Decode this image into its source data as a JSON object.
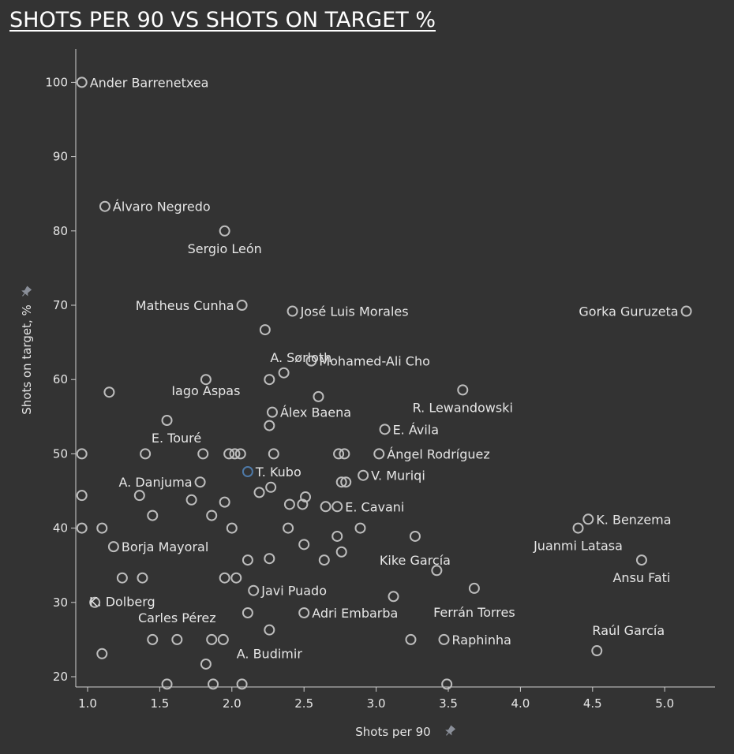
{
  "colors": {
    "background": "#333333",
    "marker": "#bdbdbd",
    "highlight": "#4e79a7",
    "text": "#e6e6e6",
    "axis": "#cfcfcf"
  },
  "icons": {
    "axis_pin": "pin-icon"
  },
  "chart_data": {
    "type": "scatter",
    "title": "SHOTS PER 90 VS SHOTS ON TARGET %",
    "xlabel": "Shots per 90",
    "ylabel": "Shots on target, %",
    "xlim": [
      0.95,
      5.45
    ],
    "ylim": [
      19,
      106
    ],
    "xticks": [
      "1.0",
      "1.5",
      "2.0",
      "2.5",
      "3.0",
      "3.5",
      "4.0",
      "4.5",
      "5.0"
    ],
    "yticks": [
      "20",
      "30",
      "40",
      "50",
      "60",
      "70",
      "80",
      "90",
      "100"
    ],
    "grid": false,
    "labeled_points": [
      {
        "name": "Ander Barrenetxea",
        "x": 0.96,
        "y": 100.0
      },
      {
        "name": "Álvaro Negredo",
        "x": 1.12,
        "y": 83.3
      },
      {
        "name": "Sergio León",
        "x": 1.95,
        "y": 80.0
      },
      {
        "name": "Matheus Cunha",
        "x": 2.07,
        "y": 70.0
      },
      {
        "name": "José Luis Morales",
        "x": 2.42,
        "y": 69.2
      },
      {
        "name": "Gorka Guruzeta",
        "x": 5.15,
        "y": 69.2
      },
      {
        "name": "A. Sørloth",
        "x": 2.26,
        "y": 60.0
      },
      {
        "name": "Mohamed-Ali Cho",
        "x": 2.55,
        "y": 62.5
      },
      {
        "name": "Iago Aspas",
        "x": 1.82,
        "y": 60.0
      },
      {
        "name": "R. Lewandowski",
        "x": 3.6,
        "y": 58.6
      },
      {
        "name": "Álex Baena",
        "x": 2.28,
        "y": 55.6
      },
      {
        "name": "E. Ávila",
        "x": 3.06,
        "y": 53.3
      },
      {
        "name": "E. Touré",
        "x": 1.55,
        "y": 54.5
      },
      {
        "name": "Ángel Rodríguez",
        "x": 3.02,
        "y": 50.0
      },
      {
        "name": "T. Kubo",
        "x": 2.11,
        "y": 47.6
      },
      {
        "name": "V. Muriqi",
        "x": 2.91,
        "y": 47.1
      },
      {
        "name": "A. Danjuma",
        "x": 1.78,
        "y": 46.2
      },
      {
        "name": "E. Cavani",
        "x": 2.73,
        "y": 42.9
      },
      {
        "name": "K. Benzema",
        "x": 4.47,
        "y": 41.2
      },
      {
        "name": "Juanmi Latasa",
        "x": 4.4,
        "y": 40.0
      },
      {
        "name": "Borja Mayoral",
        "x": 1.18,
        "y": 37.5
      },
      {
        "name": "Kike García",
        "x": 3.27,
        "y": 38.9
      },
      {
        "name": "Ansu Fati",
        "x": 4.84,
        "y": 35.7
      },
      {
        "name": "K. Dolberg",
        "x": 1.24,
        "y": 33.3
      },
      {
        "name": "Javi Puado",
        "x": 2.15,
        "y": 31.6
      },
      {
        "name": "Ferrán Torres",
        "x": 3.68,
        "y": 31.9
      },
      {
        "name": "Adri Embarba",
        "x": 2.5,
        "y": 28.6
      },
      {
        "name": "Carles Pérez",
        "x": 1.62,
        "y": 25.0
      },
      {
        "name": "A. Budimir",
        "x": 2.26,
        "y": 26.3
      },
      {
        "name": "Raphinha",
        "x": 3.47,
        "y": 25.0
      },
      {
        "name": "Raúl García",
        "x": 4.53,
        "y": 23.5
      }
    ],
    "unlabeled_points": [
      [
        2.23,
        66.7
      ],
      [
        2.36,
        60.9
      ],
      [
        2.6,
        57.7
      ],
      [
        1.15,
        58.3
      ],
      [
        2.26,
        53.8
      ],
      [
        0.96,
        50.0
      ],
      [
        1.4,
        50.0
      ],
      [
        1.8,
        50.0
      ],
      [
        1.98,
        50.0
      ],
      [
        2.02,
        50.0
      ],
      [
        2.06,
        50.0
      ],
      [
        2.29,
        50.0
      ],
      [
        2.74,
        50.0
      ],
      [
        2.78,
        50.0
      ],
      [
        2.76,
        46.2
      ],
      [
        2.79,
        46.2
      ],
      [
        2.27,
        45.5
      ],
      [
        2.19,
        44.8
      ],
      [
        0.96,
        44.4
      ],
      [
        1.36,
        44.4
      ],
      [
        1.72,
        43.8
      ],
      [
        1.95,
        43.5
      ],
      [
        2.51,
        44.2
      ],
      [
        2.4,
        43.2
      ],
      [
        2.49,
        43.2
      ],
      [
        2.65,
        42.9
      ],
      [
        1.45,
        41.7
      ],
      [
        1.86,
        41.7
      ],
      [
        0.96,
        40.0
      ],
      [
        1.1,
        40.0
      ],
      [
        2.0,
        40.0
      ],
      [
        2.39,
        40.0
      ],
      [
        2.89,
        40.0
      ],
      [
        2.73,
        38.9
      ],
      [
        2.5,
        37.8
      ],
      [
        2.76,
        36.8
      ],
      [
        2.11,
        35.7
      ],
      [
        2.26,
        35.9
      ],
      [
        2.64,
        35.7
      ],
      [
        3.42,
        34.3
      ],
      [
        1.38,
        33.3
      ],
      [
        1.95,
        33.3
      ],
      [
        2.03,
        33.3
      ],
      [
        1.05,
        30.0
      ],
      [
        3.12,
        30.8
      ],
      [
        2.11,
        28.6
      ],
      [
        1.1,
        23.1
      ],
      [
        1.45,
        25.0
      ],
      [
        1.86,
        25.0
      ],
      [
        1.94,
        25.0
      ],
      [
        3.24,
        25.0
      ],
      [
        1.82,
        21.7
      ],
      [
        1.55,
        19.0
      ],
      [
        1.87,
        19.0
      ],
      [
        2.07,
        19.0
      ],
      [
        3.49,
        19.0
      ]
    ],
    "highlight": "T. Kubo"
  }
}
